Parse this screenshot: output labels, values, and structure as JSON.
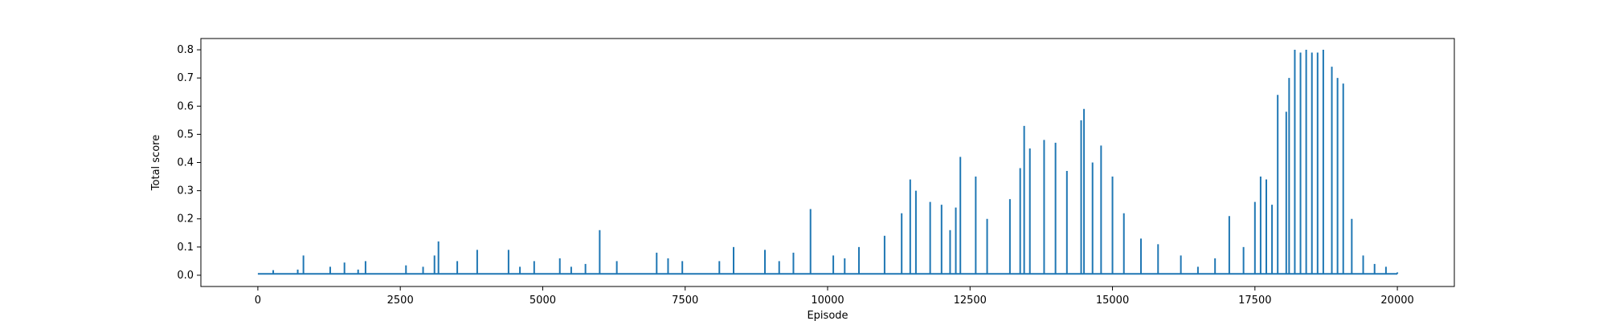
{
  "chart_data": {
    "type": "line",
    "xlabel": "Episode",
    "ylabel": "Total score",
    "xlim": [
      -1000,
      21000
    ],
    "ylim": [
      -0.04,
      0.84
    ],
    "xticks": [
      0,
      2500,
      5000,
      7500,
      10000,
      12500,
      15000,
      17500,
      20000
    ],
    "yticks": [
      0.0,
      0.1,
      0.2,
      0.3,
      0.4,
      0.5,
      0.6,
      0.7,
      0.8
    ],
    "xtick_labels": [
      "0",
      "2500",
      "5000",
      "7500",
      "10000",
      "12500",
      "15000",
      "17500",
      "20000"
    ],
    "ytick_labels": [
      "0.0",
      "0.1",
      "0.2",
      "0.3",
      "0.4",
      "0.5",
      "0.6",
      "0.7",
      "0.8"
    ],
    "grid": false,
    "series_color": "#1f77b4",
    "series": [
      {
        "x_start": 0,
        "x_end": 20000,
        "baseline": 0.005,
        "peaks": [
          [
            270,
            0.018
          ],
          [
            700,
            0.02
          ],
          [
            800,
            0.07
          ],
          [
            1270,
            0.03
          ],
          [
            1520,
            0.045
          ],
          [
            1760,
            0.02
          ],
          [
            1890,
            0.05
          ],
          [
            2600,
            0.035
          ],
          [
            2900,
            0.03
          ],
          [
            3100,
            0.07
          ],
          [
            3170,
            0.12
          ],
          [
            3500,
            0.05
          ],
          [
            3850,
            0.09
          ],
          [
            4400,
            0.09
          ],
          [
            4600,
            0.03
          ],
          [
            4850,
            0.05
          ],
          [
            5300,
            0.06
          ],
          [
            5500,
            0.03
          ],
          [
            5750,
            0.04
          ],
          [
            6000,
            0.16
          ],
          [
            6300,
            0.05
          ],
          [
            7000,
            0.08
          ],
          [
            7200,
            0.06
          ],
          [
            7450,
            0.05
          ],
          [
            8100,
            0.05
          ],
          [
            8350,
            0.1
          ],
          [
            8900,
            0.09
          ],
          [
            9150,
            0.05
          ],
          [
            9400,
            0.08
          ],
          [
            9700,
            0.235
          ],
          [
            10100,
            0.07
          ],
          [
            10300,
            0.06
          ],
          [
            10550,
            0.1
          ],
          [
            11000,
            0.14
          ],
          [
            11300,
            0.22
          ],
          [
            11450,
            0.34
          ],
          [
            11550,
            0.3
          ],
          [
            11800,
            0.26
          ],
          [
            12000,
            0.25
          ],
          [
            12150,
            0.16
          ],
          [
            12250,
            0.24
          ],
          [
            12330,
            0.42
          ],
          [
            12600,
            0.35
          ],
          [
            12800,
            0.2
          ],
          [
            13200,
            0.27
          ],
          [
            13380,
            0.38
          ],
          [
            13450,
            0.53
          ],
          [
            13550,
            0.45
          ],
          [
            13800,
            0.48
          ],
          [
            14000,
            0.47
          ],
          [
            14200,
            0.37
          ],
          [
            14450,
            0.55
          ],
          [
            14500,
            0.59
          ],
          [
            14650,
            0.4
          ],
          [
            14800,
            0.46
          ],
          [
            15000,
            0.35
          ],
          [
            15200,
            0.22
          ],
          [
            15500,
            0.13
          ],
          [
            15800,
            0.11
          ],
          [
            16200,
            0.07
          ],
          [
            16500,
            0.03
          ],
          [
            16800,
            0.06
          ],
          [
            17050,
            0.21
          ],
          [
            17300,
            0.1
          ],
          [
            17500,
            0.26
          ],
          [
            17600,
            0.35
          ],
          [
            17700,
            0.34
          ],
          [
            17800,
            0.25
          ],
          [
            17900,
            0.64
          ],
          [
            18050,
            0.58
          ],
          [
            18100,
            0.7
          ],
          [
            18200,
            0.8
          ],
          [
            18300,
            0.79
          ],
          [
            18400,
            0.8
          ],
          [
            18500,
            0.79
          ],
          [
            18600,
            0.79
          ],
          [
            18700,
            0.8
          ],
          [
            18850,
            0.74
          ],
          [
            18950,
            0.7
          ],
          [
            19050,
            0.68
          ],
          [
            19200,
            0.2
          ],
          [
            19400,
            0.07
          ],
          [
            19600,
            0.04
          ],
          [
            19800,
            0.03
          ],
          [
            20000,
            0.01
          ]
        ]
      }
    ]
  }
}
